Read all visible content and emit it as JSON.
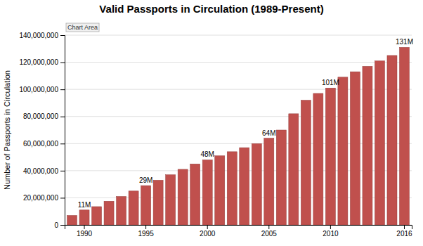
{
  "chart_data": {
    "type": "bar",
    "title": "Valid Passports in Circulation (1989-Present)",
    "ylabel": "Number of Passports in Circulation",
    "categories": [
      null,
      "1990",
      null,
      null,
      null,
      null,
      "1995",
      null,
      null,
      null,
      null,
      "2000",
      null,
      null,
      null,
      null,
      "2005",
      null,
      null,
      null,
      null,
      "2010",
      null,
      null,
      null,
      null,
      null,
      "2016"
    ],
    "values": [
      7000000,
      11000000,
      13500000,
      17500000,
      21000000,
      25000000,
      29000000,
      33000000,
      37000000,
      41000000,
      45000000,
      48000000,
      51000000,
      54000000,
      57000000,
      60000000,
      64000000,
      70000000,
      82000000,
      92000000,
      97000000,
      101000000,
      109000000,
      113000000,
      117000000,
      121000000,
      125000000,
      131000000
    ],
    "value_labels": [
      null,
      "11M",
      null,
      null,
      null,
      null,
      "29M",
      null,
      null,
      null,
      null,
      "48M",
      null,
      null,
      null,
      null,
      "64M",
      null,
      null,
      null,
      null,
      "101M",
      null,
      null,
      null,
      null,
      null,
      "131M"
    ],
    "color": "#c0504d",
    "ylim": [
      0,
      140000000
    ],
    "yticks": [
      0,
      {
        "value": 20000000,
        "label": "20,000,000"
      },
      {
        "value": 40000000,
        "label": "40,000,000"
      },
      {
        "value": 60000000,
        "label": "60,000,000"
      },
      {
        "value": 80000000,
        "label": "80,000,000"
      },
      {
        "value": 100000000,
        "label": "100,000,000"
      },
      {
        "value": 120000000,
        "label": "120,000,000"
      },
      {
        "value": 140000000,
        "label": "140,000,000"
      }
    ],
    "grid": true,
    "annotations": [
      "Chart Area"
    ]
  }
}
